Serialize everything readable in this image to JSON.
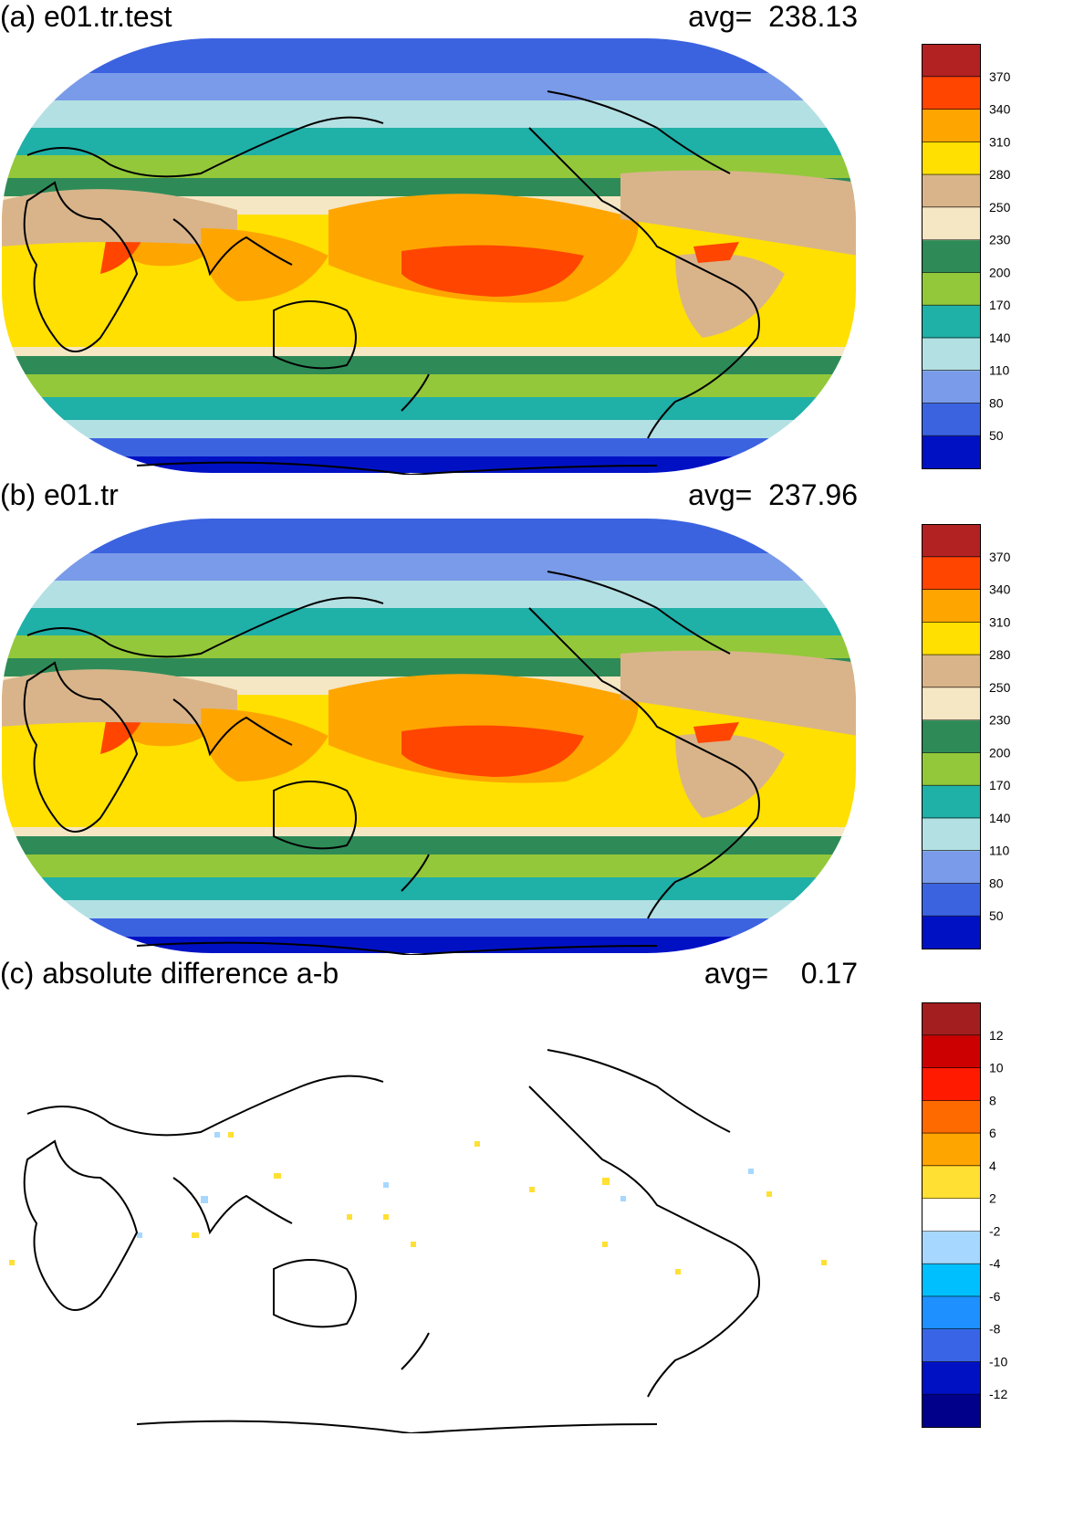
{
  "panels": [
    {
      "id": "a",
      "title": "(a) e01.tr.test",
      "avg_label": "avg=",
      "avg_value": "238.13"
    },
    {
      "id": "b",
      "title": "(b) e01.tr",
      "avg_label": "avg=",
      "avg_value": "237.96"
    },
    {
      "id": "c",
      "title": "(c) absolute difference a-b",
      "avg_label": "avg=",
      "avg_value": "0.17"
    }
  ],
  "colorbar_main": {
    "colors": [
      "#0011c4",
      "#3b63e0",
      "#7a9be9",
      "#b3e0e3",
      "#1fb0a8",
      "#93c83a",
      "#2e8b57",
      "#f5e6c4",
      "#d9b48a",
      "#ffe000",
      "#ffa500",
      "#ff4500",
      "#b22222"
    ],
    "labels": [
      "50",
      "80",
      "110",
      "140",
      "170",
      "200",
      "230",
      "250",
      "280",
      "310",
      "340",
      "370"
    ]
  },
  "colorbar_diff": {
    "colors": [
      "#00008b",
      "#0011c4",
      "#3a64e6",
      "#1e90ff",
      "#00bfff",
      "#a6d8ff",
      "#ffffff",
      "#ffe033",
      "#ffa500",
      "#ff6a00",
      "#ff1a00",
      "#cc0000",
      "#a31e1e"
    ],
    "labels": [
      "-12",
      "-10",
      "-8",
      "-6",
      "-4",
      "-2",
      "2",
      "4",
      "6",
      "8",
      "10",
      "12"
    ]
  }
}
